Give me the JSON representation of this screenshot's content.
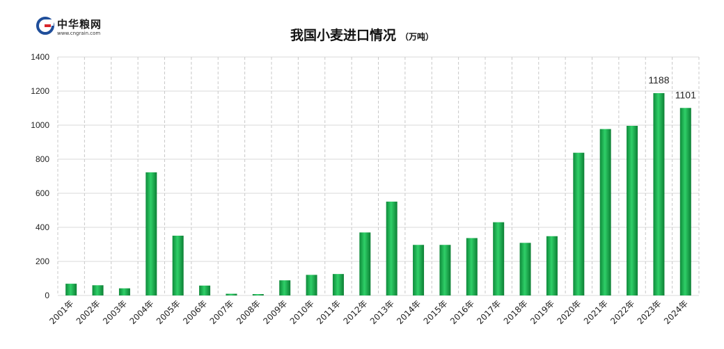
{
  "logo": {
    "name": "中华粮网",
    "url": "www.cngrain.com"
  },
  "chart_data": {
    "type": "bar",
    "title": "我国小麦进口情况",
    "unit": "（万吨）",
    "categories": [
      "2001年",
      "2002年",
      "2003年",
      "2004年",
      "2005年",
      "2006年",
      "2007年",
      "2008年",
      "2009年",
      "2010年",
      "2011年",
      "2012年",
      "2013年",
      "2014年",
      "2015年",
      "2016年",
      "2017年",
      "2018年",
      "2019年",
      "2020年",
      "2021年",
      "2022年",
      "2023年",
      "2024年"
    ],
    "values": [
      69,
      60,
      42,
      723,
      351,
      58,
      10,
      8,
      89,
      121,
      126,
      370,
      551,
      297,
      297,
      337,
      430,
      309,
      348,
      838,
      977,
      996,
      1188,
      1101
    ],
    "data_labels": {
      "2023年": "1188",
      "2024年": "1101"
    },
    "ylim": [
      0,
      1400
    ],
    "yticks": [
      0,
      200,
      400,
      600,
      800,
      1000,
      1200,
      1400
    ],
    "xlabel": "",
    "ylabel": "",
    "grid": true,
    "bar_color": "#1aab4e"
  }
}
